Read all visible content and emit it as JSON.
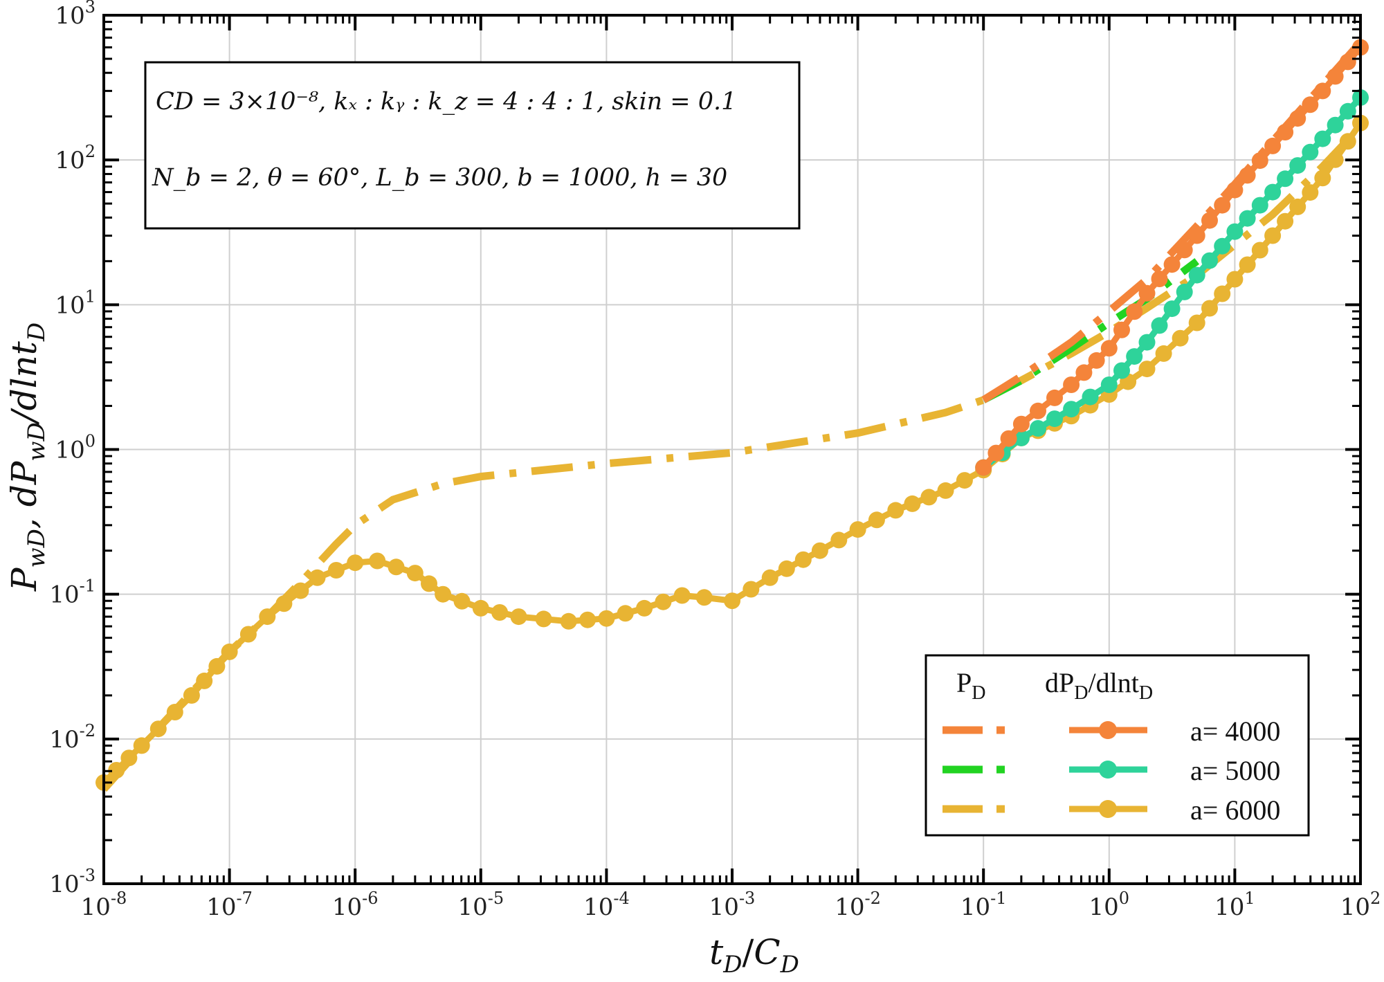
{
  "chart_data": {
    "type": "line",
    "x_scale": "log",
    "y_scale": "log",
    "xlim": [
      1e-08,
      100
    ],
    "ylim": [
      0.001,
      1000
    ],
    "x_ticks": [
      {
        "base": "10",
        "exp": "-8"
      },
      {
        "base": "10",
        "exp": "-7"
      },
      {
        "base": "10",
        "exp": "-6"
      },
      {
        "base": "10",
        "exp": "-5"
      },
      {
        "base": "10",
        "exp": "-4"
      },
      {
        "base": "10",
        "exp": "-3"
      },
      {
        "base": "10",
        "exp": "-2"
      },
      {
        "base": "10",
        "exp": "-1"
      },
      {
        "base": "10",
        "exp": "0"
      },
      {
        "base": "10",
        "exp": "1"
      },
      {
        "base": "10",
        "exp": "2"
      }
    ],
    "y_ticks": [
      {
        "base": "10",
        "exp": "-3"
      },
      {
        "base": "10",
        "exp": "-2"
      },
      {
        "base": "10",
        "exp": "-1"
      },
      {
        "base": "10",
        "exp": "0"
      },
      {
        "base": "10",
        "exp": "1"
      },
      {
        "base": "10",
        "exp": "2"
      },
      {
        "base": "10",
        "exp": "3"
      }
    ],
    "xlabel": {
      "t": "t",
      "t_sub": "D",
      "sep": "/",
      "c": "C",
      "c_sub": "D"
    },
    "ylabel": "P_wD, dP_wD/dlnt_D",
    "grid": true,
    "legend_position": "bottom-right",
    "annotation_lines": [
      "CD = 3×10⁻⁸, kₓ : kᵧ : k_z = 4 : 4 : 1, skin = 0.1",
      "N_b = 2, θ = 60°, L_b = 300, b = 1000, h = 30"
    ],
    "legend": {
      "col1_main": "P",
      "col1_sub": "D",
      "col2_a": "dP",
      "col2_a_sub": "D",
      "col2_b": "/dlnt",
      "col2_b_sub": "D",
      "entries": [
        "a= 4000",
        "a= 5000",
        "a= 6000"
      ]
    },
    "colors": {
      "a4000": "#f4843a",
      "a5000_pd": "#22d322",
      "a5000_deriv": "#2ed39a",
      "a6000": "#e8b433"
    },
    "series": [
      {
        "name": "a= 4000",
        "kind": "P_D",
        "style": "dash-dot",
        "color": "#f4843a",
        "x": [
          0.1,
          0.2,
          0.5,
          1,
          2,
          5,
          10,
          20,
          50,
          100
        ],
        "y": [
          2.2,
          3.2,
          5.5,
          9.0,
          15,
          35,
          68,
          135,
          330,
          650
        ]
      },
      {
        "name": "a= 5000",
        "kind": "P_D",
        "style": "dash-dot",
        "color": "#22d322",
        "x": [
          0.1,
          0.2,
          0.5,
          1,
          2,
          5
        ],
        "y": [
          2.2,
          3.0,
          5.0,
          7.5,
          11,
          20
        ]
      },
      {
        "name": "a= 6000",
        "kind": "P_D",
        "style": "dash-dot",
        "color": "#e8b433",
        "x": [
          1e-08,
          3e-08,
          1e-07,
          2e-07,
          4e-07,
          7e-07,
          1e-06,
          2e-06,
          5e-06,
          1e-05,
          0.0001,
          0.001,
          0.01,
          0.05,
          0.1,
          0.2,
          0.5,
          1,
          2,
          5,
          10,
          20,
          50,
          100
        ],
        "y": [
          0.0045,
          0.013,
          0.04,
          0.07,
          0.13,
          0.22,
          0.3,
          0.45,
          0.58,
          0.65,
          0.8,
          0.95,
          1.3,
          1.8,
          2.2,
          3.0,
          4.6,
          6.5,
          9.5,
          16,
          26,
          42,
          90,
          170
        ]
      },
      {
        "name": "a= 4000",
        "kind": "dP_D/dlnt_D",
        "style": "line-marker",
        "color": "#f4843a",
        "x": [
          0.1,
          0.2,
          0.5,
          1,
          2,
          5,
          10,
          20,
          50,
          100
        ],
        "y": [
          0.75,
          1.5,
          2.8,
          5.0,
          12,
          30,
          62,
          125,
          300,
          600
        ]
      },
      {
        "name": "a= 5000",
        "kind": "dP_D/dlnt_D",
        "style": "line-marker",
        "color": "#2ed39a",
        "x": [
          0.1,
          0.2,
          0.5,
          1,
          2,
          5,
          10,
          20,
          50,
          100
        ],
        "y": [
          0.75,
          1.2,
          1.9,
          2.8,
          5.5,
          16,
          32,
          60,
          140,
          270
        ]
      },
      {
        "name": "a= 6000",
        "kind": "dP_D/dlnt_D",
        "style": "line-marker",
        "color": "#e8b433",
        "x": [
          1e-08,
          2e-08,
          5e-08,
          1e-07,
          2e-07,
          5e-07,
          1e-06,
          1.5e-06,
          3e-06,
          5e-06,
          1e-05,
          2e-05,
          5e-05,
          0.0001,
          0.0002,
          0.0004,
          0.0006,
          0.001,
          0.002,
          0.005,
          0.01,
          0.02,
          0.05,
          0.1,
          0.2,
          0.5,
          1,
          2,
          5,
          10,
          20,
          50,
          100
        ],
        "y": [
          0.005,
          0.009,
          0.02,
          0.04,
          0.07,
          0.13,
          0.165,
          0.17,
          0.14,
          0.1,
          0.08,
          0.07,
          0.065,
          0.068,
          0.08,
          0.098,
          0.095,
          0.09,
          0.13,
          0.2,
          0.28,
          0.38,
          0.52,
          0.72,
          1.2,
          1.7,
          2.4,
          3.6,
          7.5,
          15,
          30,
          75,
          180
        ]
      }
    ]
  }
}
